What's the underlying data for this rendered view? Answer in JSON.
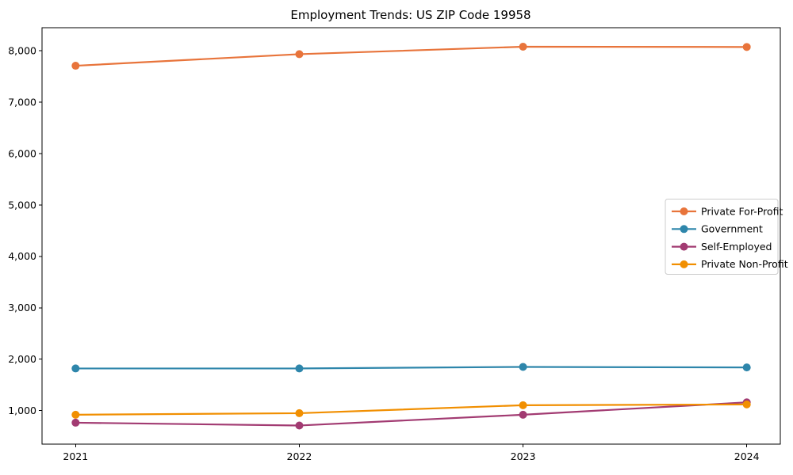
{
  "figure": {
    "background": "#ffffff",
    "axis_color": "#000000",
    "legend_border_color": "#cccccc",
    "legend_background": "#ffffff"
  },
  "chart_data": {
    "type": "line",
    "title": "Employment Trends: US ZIP Code 19958",
    "xlabel": "",
    "ylabel": "",
    "x": [
      2021,
      2022,
      2023,
      2024
    ],
    "x_tick_labels": [
      "2021",
      "2022",
      "2023",
      "2024"
    ],
    "series": [
      {
        "name": "Private For-Profit",
        "color": "#E8743B",
        "values": [
          7710,
          7935,
          8080,
          8075
        ]
      },
      {
        "name": "Government",
        "color": "#2E86AB",
        "values": [
          1820,
          1820,
          1850,
          1840
        ]
      },
      {
        "name": "Self-Employed",
        "color": "#A23B72",
        "values": [
          765,
          710,
          920,
          1160
        ]
      },
      {
        "name": "Private Non-Profit",
        "color": "#F18F01",
        "values": [
          920,
          950,
          1105,
          1120
        ]
      }
    ],
    "yticks": [
      1000,
      2000,
      3000,
      4000,
      5000,
      6000,
      7000,
      8000
    ],
    "ytick_labels": [
      "1,000",
      "2,000",
      "3,000",
      "4,000",
      "5,000",
      "6,000",
      "7,000",
      "8,000"
    ],
    "ylim": [
      348,
      8450
    ],
    "xlim": [
      2020.85,
      2024.15
    ],
    "grid": false,
    "marker": "circle",
    "legend_position": "right"
  }
}
